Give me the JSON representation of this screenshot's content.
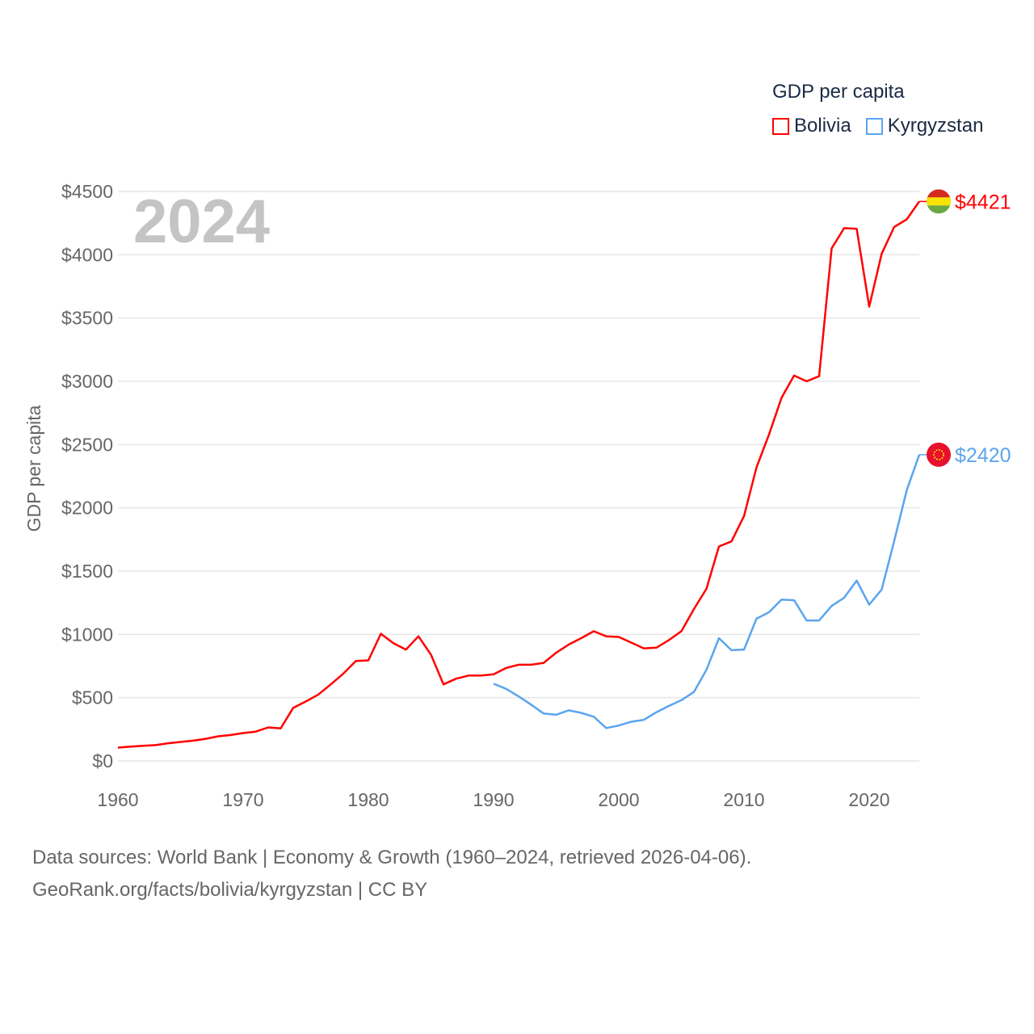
{
  "chart_data": {
    "type": "line",
    "title": "GDP per capita",
    "year_label": "2024",
    "ylabel": "GDP per capita",
    "xlabel": "",
    "xlim": [
      1960,
      2024
    ],
    "ylim": [
      0,
      4500
    ],
    "x_ticks": [
      1960,
      1970,
      1980,
      1990,
      2000,
      2010,
      2020
    ],
    "y_ticks": [
      0,
      500,
      1000,
      1500,
      2000,
      2500,
      3000,
      3500,
      4000,
      4500
    ],
    "y_tick_labels": [
      "$0",
      "$500",
      "$1000",
      "$1500",
      "$2000",
      "$2500",
      "$3000",
      "$3500",
      "$4000",
      "$4500"
    ],
    "grid": true,
    "legend_placement": "top-right",
    "series": [
      {
        "name": "Bolivia",
        "color": "#ff0000",
        "end_label": "$4421",
        "start_year": 1960,
        "values": [
          105,
          113,
          120,
          125,
          140,
          150,
          160,
          175,
          195,
          205,
          220,
          232,
          265,
          258,
          420,
          470,
          525,
          605,
          690,
          790,
          795,
          1005,
          930,
          880,
          985,
          840,
          605,
          650,
          675,
          675,
          685,
          735,
          760,
          760,
          775,
          855,
          920,
          970,
          1025,
          985,
          980,
          935,
          890,
          895,
          955,
          1025,
          1200,
          1360,
          1695,
          1735,
          1935,
          2320,
          2580,
          2870,
          3045,
          3000,
          3040,
          4050,
          4210,
          4205,
          3590,
          4010,
          4220,
          4280,
          4421
        ]
      },
      {
        "name": "Kyrgyzstan",
        "color": "#5aa5ee",
        "end_label": "$2420",
        "start_year": 1990,
        "values": [
          610,
          570,
          510,
          445,
          375,
          365,
          400,
          380,
          350,
          260,
          280,
          310,
          325,
          385,
          435,
          480,
          545,
          720,
          970,
          875,
          880,
          1125,
          1175,
          1275,
          1270,
          1110,
          1110,
          1225,
          1290,
          1425,
          1235,
          1355,
          1740,
          2140,
          2420
        ]
      }
    ]
  },
  "footer": {
    "line1": "Data sources: World Bank | Economy & Growth (1960–2024, retrieved 2026-04-06).",
    "line2": "GeoRank.org/facts/bolivia/kyrgyzstan | CC BY"
  }
}
